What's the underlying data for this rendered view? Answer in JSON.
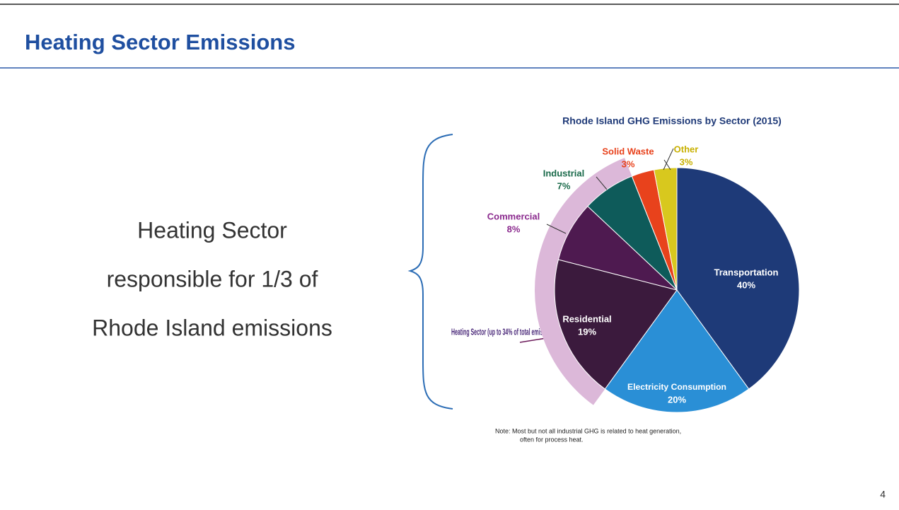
{
  "slide_title": "Heating Sector Emissions",
  "body_lines": [
    "Heating Sector",
    "responsible for 1/3 of",
    "Rhode Island emissions"
  ],
  "page_number": "4",
  "chart_data": {
    "type": "pie",
    "title": "Rhode Island GHG Emissions by Sector (2015)",
    "categories": [
      "Transportation",
      "Electricity Consumption",
      "Residential",
      "Commercial",
      "Industrial",
      "Solid Waste",
      "Other"
    ],
    "values": [
      40,
      20,
      19,
      8,
      7,
      3,
      3
    ],
    "value_labels": [
      "40%",
      "20%",
      "19%",
      "8%",
      "7%",
      "3%",
      "3%"
    ],
    "colors": [
      "#1e3a78",
      "#2a8fd6",
      "#3b1a3d",
      "#4e1a50",
      "#0e5b5a",
      "#e8421c",
      "#d8c81e"
    ],
    "annotation": "Heating Sector (up to 34% of total emissions)",
    "note": [
      "Note: Most but not all industrial GHG is related to heat generation,",
      "often for process heat."
    ]
  }
}
